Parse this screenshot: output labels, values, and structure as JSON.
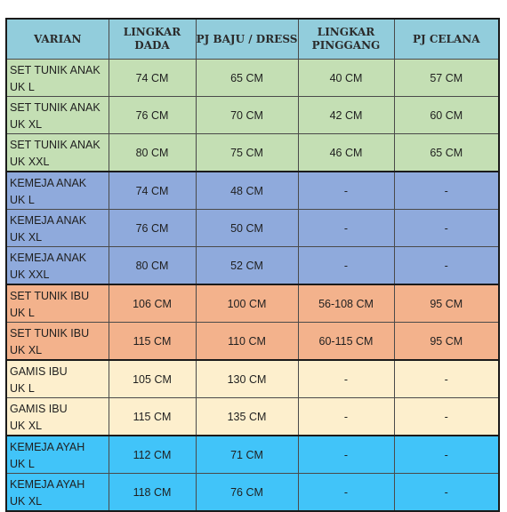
{
  "table": {
    "headers": [
      "VARIAN",
      "LINGKAR\nDADA",
      "PJ BAJU / DRESS",
      "LINGKAR\nPINGGANG",
      "PJ CELANA"
    ],
    "groups": [
      {
        "color": "#c4dfb4",
        "rows": [
          [
            "SET TUNIK ANAK\nUK L",
            "74 CM",
            "65 CM",
            "40 CM",
            "57 CM"
          ],
          [
            "SET TUNIK ANAK\nUK XL",
            "76 CM",
            "70 CM",
            "42 CM",
            "60 CM"
          ],
          [
            "SET TUNIK ANAK\nUK XXL",
            "80 CM",
            "75 CM",
            "46 CM",
            "65 CM"
          ]
        ]
      },
      {
        "color": "#8faadc",
        "rows": [
          [
            "KEMEJA ANAK\nUK L",
            "74 CM",
            "48 CM",
            "-",
            "-"
          ],
          [
            "KEMEJA ANAK\nUK XL",
            "76 CM",
            "50 CM",
            "-",
            "-"
          ],
          [
            "KEMEJA ANAK\nUK XXL",
            "80 CM",
            "52 CM",
            "-",
            "-"
          ]
        ]
      },
      {
        "color": "#f3b28c",
        "rows": [
          [
            "SET TUNIK IBU\nUK L",
            "106 CM",
            "100 CM",
            "56-108 CM",
            "95 CM"
          ],
          [
            "SET TUNIK IBU\nUK XL",
            "115 CM",
            "110 CM",
            "60-115 CM",
            "95 CM"
          ]
        ]
      },
      {
        "color": "#fdefcd",
        "rows": [
          [
            "GAMIS IBU\nUK L",
            "105 CM",
            "130 CM",
            "-",
            "-"
          ],
          [
            "GAMIS IBU\nUK XL",
            "115 CM",
            "135 CM",
            "-",
            "-"
          ]
        ]
      },
      {
        "color": "#41c4f9",
        "rows": [
          [
            "KEMEJA AYAH\nUK L",
            "112 CM",
            "71 CM",
            "-",
            "-"
          ],
          [
            "KEMEJA AYAH\nUK XL",
            "118 CM",
            "76 CM",
            "-",
            "-"
          ]
        ]
      }
    ]
  }
}
